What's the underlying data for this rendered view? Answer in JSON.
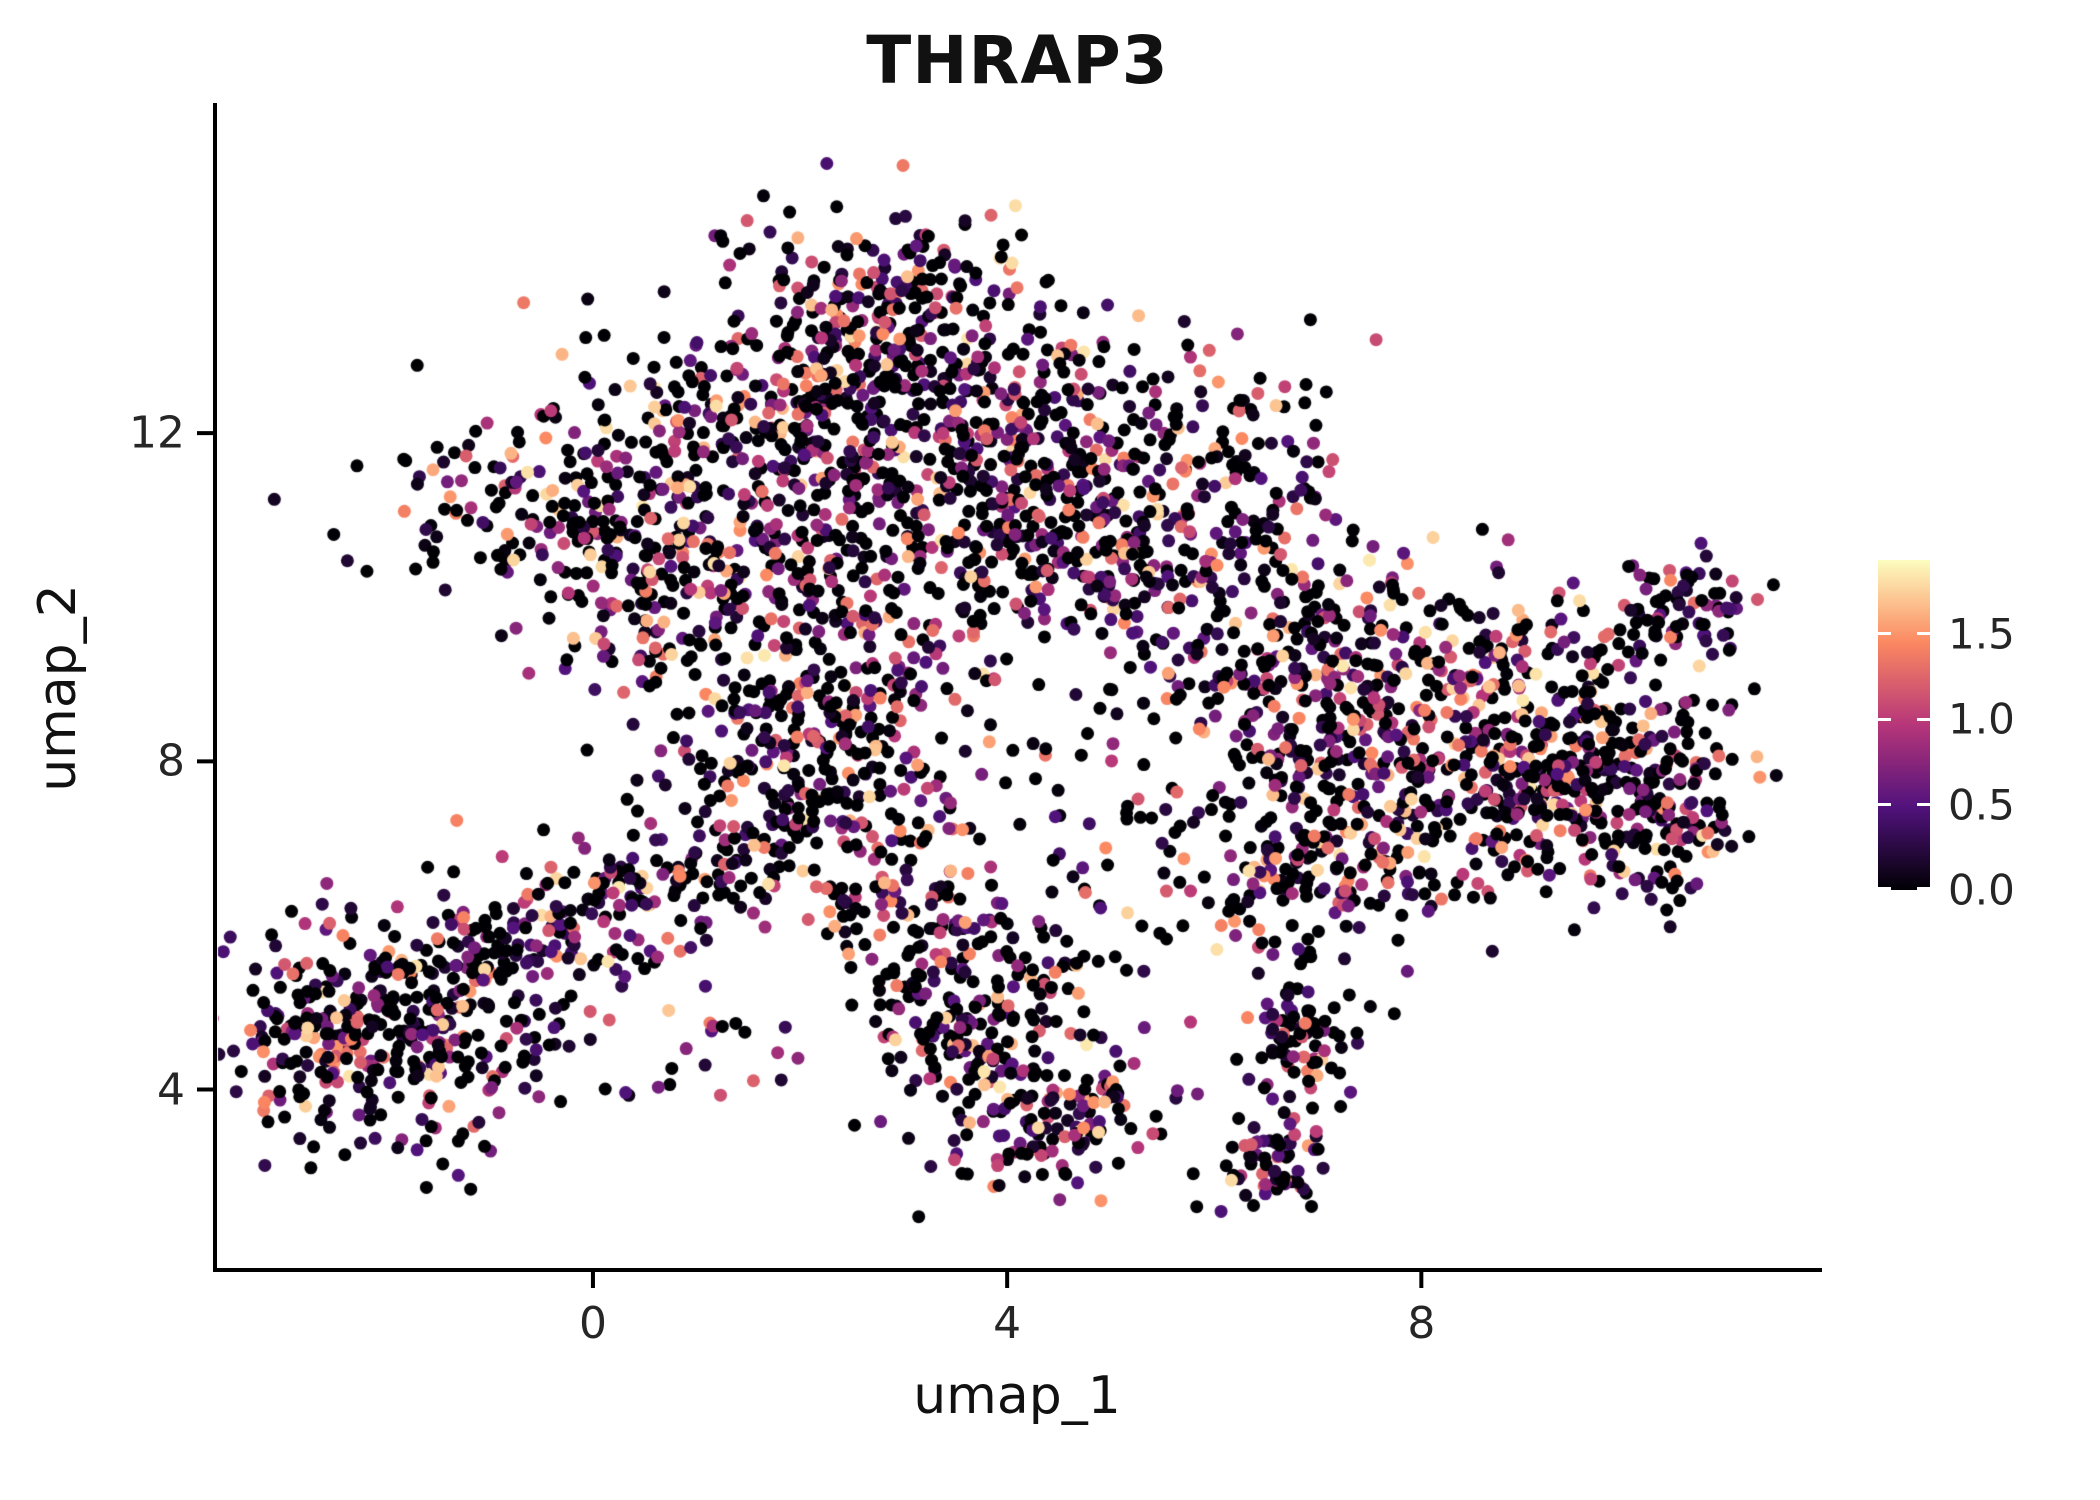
{
  "title": "THRAP3",
  "axes": {
    "x": {
      "label": "umap_1",
      "ticks": [
        0,
        4,
        8
      ],
      "tick_labels": [
        "0",
        "4",
        "8"
      ],
      "range": [
        -3.65,
        11.85
      ]
    },
    "y": {
      "label": "umap_2",
      "ticks": [
        4,
        8,
        12
      ],
      "tick_labels": [
        "4",
        "8",
        "12"
      ],
      "range": [
        1.8,
        16.0
      ]
    }
  },
  "colorbar": {
    "domain": [
      0,
      1.93
    ],
    "tick_values": [
      1.5,
      1.0,
      0.5,
      0.0
    ],
    "tick_labels": [
      "1.5",
      "1.0",
      "0.5",
      "0.0"
    ],
    "gradient_stops": [
      [
        "0",
        "#000004"
      ],
      [
        "0.25",
        "#51127c"
      ],
      [
        "0.5",
        "#b63679"
      ],
      [
        "0.75",
        "#fb8861"
      ],
      [
        "1",
        "#fcfdbf"
      ]
    ]
  },
  "colors": {
    "background": "#ffffff",
    "axis": "#000000",
    "title_text": "#111111",
    "tick_text": "#262626"
  },
  "chart_data": {
    "type": "scatter",
    "title": "THRAP3",
    "xlabel": "umap_1",
    "ylabel": "umap_2",
    "xlim": [
      -3.65,
      11.85
    ],
    "ylim": [
      1.8,
      16.0
    ],
    "grid": false,
    "legend_position": "right-colorbar",
    "color_scale": {
      "name": "magma",
      "domain": [
        0,
        1.93
      ],
      "stops": [
        [
          "0",
          "#000004"
        ],
        [
          "0.25",
          "#51127c"
        ],
        [
          "0.5",
          "#b63679"
        ],
        [
          "0.75",
          "#fb8861"
        ],
        [
          "1",
          "#fcfdbf"
        ]
      ]
    },
    "point_radius_px": 6.5,
    "seed": 7,
    "zero_fraction": 0.36,
    "value_gamma": 1.7,
    "value_max": 1.85,
    "clusters": [
      {
        "x": 2.9,
        "y": 13.6,
        "sx": 0.75,
        "sy": 0.55,
        "n": 200
      },
      {
        "x": 1.9,
        "y": 12.4,
        "sx": 1.0,
        "sy": 0.65,
        "n": 260
      },
      {
        "x": 3.9,
        "y": 12.2,
        "sx": 1.0,
        "sy": 0.7,
        "n": 260
      },
      {
        "x": 4.5,
        "y": 10.7,
        "sx": 0.75,
        "sy": 0.6,
        "n": 230
      },
      {
        "x": -0.2,
        "y": 11.0,
        "sx": 0.9,
        "sy": 0.6,
        "n": 220
      },
      {
        "x": 1.0,
        "y": 9.9,
        "sx": 0.8,
        "sy": 0.6,
        "n": 150
      },
      {
        "x": 2.3,
        "y": 10.9,
        "sx": 0.8,
        "sy": 0.8,
        "n": 160
      },
      {
        "x": 5.7,
        "y": 11.5,
        "sx": 0.9,
        "sy": 0.8,
        "n": 140
      },
      {
        "x": 6.3,
        "y": 10.0,
        "sx": 0.9,
        "sy": 0.7,
        "n": 130
      },
      {
        "x": 2.6,
        "y": 9.2,
        "sx": 0.6,
        "sy": 0.5,
        "n": 90
      },
      {
        "x": 2.1,
        "y": 8.0,
        "sx": 0.75,
        "sy": 0.75,
        "n": 260
      },
      {
        "x": 1.3,
        "y": 6.6,
        "sx": 0.35,
        "sy": 0.4,
        "n": 60
      },
      {
        "x": 0.2,
        "y": 6.3,
        "sx": 0.4,
        "sy": 0.35,
        "n": 70
      },
      {
        "x": 3.0,
        "y": 6.2,
        "sx": 0.45,
        "sy": 0.7,
        "n": 80
      },
      {
        "x": 3.9,
        "y": 5.3,
        "sx": 0.6,
        "sy": 0.7,
        "n": 110
      },
      {
        "x": 4.25,
        "y": 3.8,
        "sx": 0.5,
        "sy": 0.55,
        "n": 130
      },
      {
        "x": 3.4,
        "y": 4.7,
        "sx": 0.3,
        "sy": 0.35,
        "n": 50
      },
      {
        "x": 4.9,
        "y": 3.8,
        "sx": 0.35,
        "sy": 0.4,
        "n": 40
      },
      {
        "x": -1.8,
        "y": 4.7,
        "sx": 0.8,
        "sy": 0.7,
        "n": 300
      },
      {
        "x": -0.8,
        "y": 5.7,
        "sx": 0.55,
        "sy": 0.5,
        "n": 120
      },
      {
        "x": -2.8,
        "y": 4.6,
        "sx": 0.35,
        "sy": 0.45,
        "n": 70
      },
      {
        "x": 8.3,
        "y": 7.8,
        "sx": 1.1,
        "sy": 0.75,
        "n": 380
      },
      {
        "x": 9.7,
        "y": 7.9,
        "sx": 0.65,
        "sy": 0.6,
        "n": 180
      },
      {
        "x": 7.2,
        "y": 8.8,
        "sx": 0.7,
        "sy": 0.7,
        "n": 160
      },
      {
        "x": 7.0,
        "y": 6.7,
        "sx": 0.6,
        "sy": 0.6,
        "n": 120
      },
      {
        "x": 9.0,
        "y": 9.3,
        "sx": 0.8,
        "sy": 0.5,
        "n": 120
      },
      {
        "x": 10.3,
        "y": 7.2,
        "sx": 0.45,
        "sy": 0.5,
        "n": 80
      },
      {
        "x": 10.5,
        "y": 9.9,
        "sx": 0.33,
        "sy": 0.28,
        "n": 70
      },
      {
        "x": 6.85,
        "y": 4.6,
        "sx": 0.3,
        "sy": 0.4,
        "n": 80
      },
      {
        "x": 6.55,
        "y": 3.1,
        "sx": 0.28,
        "sy": 0.33,
        "n": 70
      },
      {
        "x": 5.3,
        "y": 6.7,
        "sx": 0.9,
        "sy": 0.9,
        "n": 50
      },
      {
        "x": 4.8,
        "y": 8.6,
        "sx": 1.6,
        "sy": 1.2,
        "n": 70
      },
      {
        "x": 0.9,
        "y": 4.9,
        "sx": 0.7,
        "sy": 0.6,
        "n": 25
      }
    ]
  }
}
